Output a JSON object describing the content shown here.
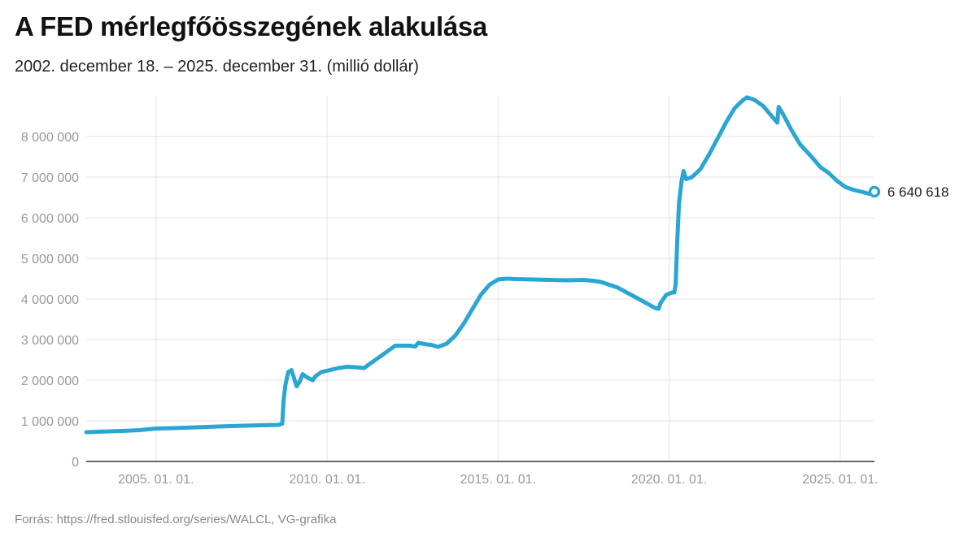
{
  "title": "A FED mérlegfőösszegének alakulása",
  "subtitle": "2002. december 18. – 2025. december 31. (millió dollár)",
  "source": "Forrás: https://fred.stlouisfed.org/series/WALCL, VG-grafika",
  "colors": {
    "line": "#2ba6d3",
    "grid": "#e3e3e3",
    "axis": "#333333"
  },
  "chart_data": {
    "type": "line",
    "title": "A FED mérlegfőösszegének alakulása",
    "subtitle": "2002. december 18. – 2025. december 31. (millió dollár)",
    "ylim": [
      0,
      9000000
    ],
    "xlim": [
      "2002.12.18",
      "2026.01.01"
    ],
    "grid": true,
    "yticks": [
      {
        "value": 0,
        "label": "0"
      },
      {
        "value": 1000000,
        "label": "1 000 000"
      },
      {
        "value": 2000000,
        "label": "2 000 000"
      },
      {
        "value": 3000000,
        "label": "3 000 000"
      },
      {
        "value": 4000000,
        "label": "4 000 000"
      },
      {
        "value": 5000000,
        "label": "5 000 000"
      },
      {
        "value": 6000000,
        "label": "6 000 000"
      },
      {
        "value": 7000000,
        "label": "7 000 000"
      },
      {
        "value": 8000000,
        "label": "8 000 000"
      }
    ],
    "xticks": [
      {
        "value": "2005.01.01",
        "label": "2005. 01. 01."
      },
      {
        "value": "2010.01.01",
        "label": "2010. 01. 01."
      },
      {
        "value": "2015.01.01",
        "label": "2015. 01. 01."
      },
      {
        "value": "2020.01.01",
        "label": "2020. 01. 01."
      },
      {
        "value": "2025.01.01",
        "label": "2025. 01. 01."
      }
    ],
    "end_label": "6 640 618",
    "series": [
      {
        "points": [
          [
            "2002.12.18",
            720000
          ],
          [
            "2003.06.01",
            735000
          ],
          [
            "2004.01.01",
            750000
          ],
          [
            "2004.07.01",
            770000
          ],
          [
            "2005.01.01",
            810000
          ],
          [
            "2005.07.01",
            820000
          ],
          [
            "2006.01.01",
            835000
          ],
          [
            "2006.07.01",
            850000
          ],
          [
            "2007.01.01",
            865000
          ],
          [
            "2007.08.01",
            880000
          ],
          [
            "2008.01.01",
            890000
          ],
          [
            "2008.08.01",
            900000
          ],
          [
            "2008.09.10",
            930000
          ],
          [
            "2008.09.24",
            1500000
          ],
          [
            "2008.10.15",
            1900000
          ],
          [
            "2008.11.12",
            2200000
          ],
          [
            "2008.12.17",
            2250000
          ],
          [
            "2009.01.21",
            2000000
          ],
          [
            "2009.02.11",
            1850000
          ],
          [
            "2009.03.11",
            1950000
          ],
          [
            "2009.04.15",
            2150000
          ],
          [
            "2009.05.13",
            2100000
          ],
          [
            "2009.06.17",
            2050000
          ],
          [
            "2009.08.01",
            2000000
          ],
          [
            "2009.09.01",
            2100000
          ],
          [
            "2009.11.01",
            2200000
          ],
          [
            "2010.02.01",
            2250000
          ],
          [
            "2010.05.01",
            2300000
          ],
          [
            "2010.08.01",
            2330000
          ],
          [
            "2010.11.01",
            2320000
          ],
          [
            "2011.02.01",
            2300000
          ],
          [
            "2011.04.01",
            2400000
          ],
          [
            "2011.07.01",
            2550000
          ],
          [
            "2011.10.01",
            2700000
          ],
          [
            "2011.12.28",
            2850000
          ],
          [
            "2012.06.01",
            2850000
          ],
          [
            "2012.08.01",
            2830000
          ],
          [
            "2012.09.01",
            2920000
          ],
          [
            "2012.12.01",
            2880000
          ],
          [
            "2013.01.15",
            2870000
          ],
          [
            "2013.04.01",
            2820000
          ],
          [
            "2013.07.01",
            2900000
          ],
          [
            "2013.10.01",
            3100000
          ],
          [
            "2014.01.01",
            3400000
          ],
          [
            "2014.04.01",
            3750000
          ],
          [
            "2014.07.01",
            4100000
          ],
          [
            "2014.10.01",
            4350000
          ],
          [
            "2015.01.01",
            4480000
          ],
          [
            "2015.04.01",
            4500000
          ],
          [
            "2015.07.01",
            4490000
          ],
          [
            "2016.01.01",
            4480000
          ],
          [
            "2016.07.01",
            4470000
          ],
          [
            "2017.01.01",
            4460000
          ],
          [
            "2017.07.01",
            4470000
          ],
          [
            "2017.10.01",
            4450000
          ],
          [
            "2018.01.01",
            4420000
          ],
          [
            "2018.07.01",
            4280000
          ],
          [
            "2019.01.01",
            4050000
          ],
          [
            "2019.05.01",
            3900000
          ],
          [
            "2019.08.01",
            3780000
          ],
          [
            "2019.09.11",
            3760000
          ],
          [
            "2019.10.01",
            3900000
          ],
          [
            "2019.12.01",
            4100000
          ],
          [
            "2020.02.01",
            4160000
          ],
          [
            "2020.02.26",
            4160000
          ],
          [
            "2020.03.11",
            4360000
          ],
          [
            "2020.03.25",
            5300000
          ],
          [
            "2020.04.15",
            6350000
          ],
          [
            "2020.05.13",
            6900000
          ],
          [
            "2020.06.03",
            7150000
          ],
          [
            "2020.07.01",
            6950000
          ],
          [
            "2020.09.01",
            7000000
          ],
          [
            "2020.12.01",
            7200000
          ],
          [
            "2021.03.01",
            7550000
          ],
          [
            "2021.06.01",
            7950000
          ],
          [
            "2021.09.01",
            8350000
          ],
          [
            "2021.12.01",
            8700000
          ],
          [
            "2022.03.01",
            8900000
          ],
          [
            "2022.04.13",
            8965000
          ],
          [
            "2022.07.01",
            8900000
          ],
          [
            "2022.10.01",
            8750000
          ],
          [
            "2023.01.01",
            8500000
          ],
          [
            "2023.03.01",
            8340000
          ],
          [
            "2023.03.15",
            8730000
          ],
          [
            "2023.05.01",
            8550000
          ],
          [
            "2023.08.01",
            8150000
          ],
          [
            "2023.11.01",
            7800000
          ],
          [
            "2024.03.01",
            7500000
          ],
          [
            "2024.06.01",
            7250000
          ],
          [
            "2024.09.01",
            7100000
          ],
          [
            "2024.12.01",
            6900000
          ],
          [
            "2025.03.01",
            6750000
          ],
          [
            "2025.06.01",
            6680000
          ],
          [
            "2025.09.01",
            6630000
          ],
          [
            "2025.11.01",
            6590000
          ],
          [
            "2025.12.31",
            6640618
          ]
        ]
      }
    ]
  }
}
